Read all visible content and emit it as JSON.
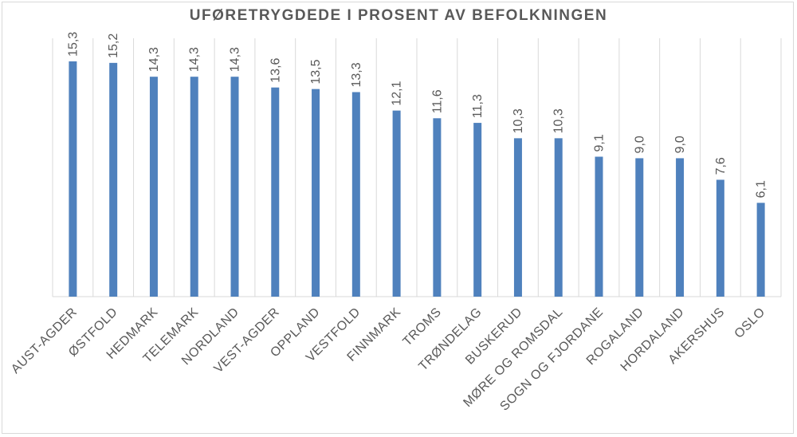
{
  "chart_data": {
    "type": "bar",
    "title": "UFØRETRYGDEDE I PROSENT AV BEFOLKNINGEN",
    "xlabel": "",
    "ylabel": "",
    "ylim": [
      0,
      16.8
    ],
    "grid": "vertical",
    "legend": "none",
    "bar_color": "#4f81bd",
    "categories": [
      "AUST-AGDER",
      "ØSTFOLD",
      "HEDMARK",
      "TELEMARK",
      "NORDLAND",
      "VEST-AGDER",
      "OPPLAND",
      "VESTFOLD",
      "FINNMARK",
      "TROMS",
      "TRØNDELAG",
      "BUSKERUD",
      "MØRE OG ROMSDAL",
      "SOGN OG FJORDANE",
      "ROGALAND",
      "HORDALAND",
      "AKERSHUS",
      "OSLO"
    ],
    "values": [
      15.3,
      15.2,
      14.3,
      14.3,
      14.3,
      13.6,
      13.5,
      13.3,
      12.1,
      11.6,
      11.3,
      10.3,
      10.3,
      9.1,
      9.0,
      9.0,
      7.6,
      6.1
    ],
    "value_labels": [
      "15,3",
      "15,2",
      "14,3",
      "14,3",
      "14,3",
      "13,6",
      "13,5",
      "13,3",
      "12,1",
      "11,6",
      "11,3",
      "10,3",
      "10,3",
      "9,1",
      "9,0",
      "9,0",
      "7,6",
      "6,1"
    ]
  }
}
